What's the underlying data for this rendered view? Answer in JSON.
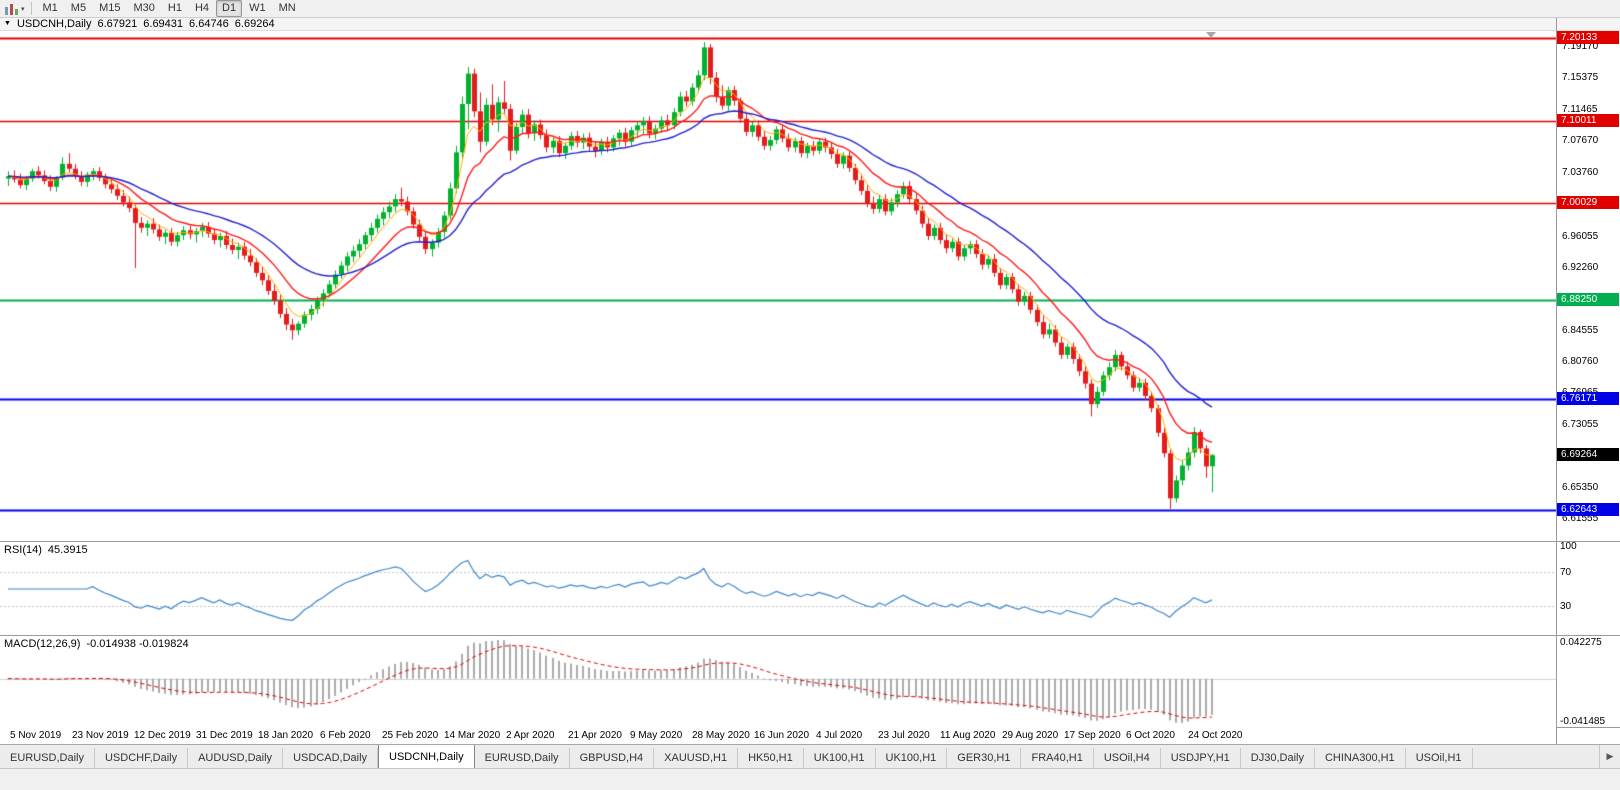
{
  "toolbar": {
    "timeframes": [
      "M1",
      "M5",
      "M15",
      "M30",
      "H1",
      "H4",
      "D1",
      "W1",
      "MN"
    ],
    "active_timeframe": "D1",
    "caret": "▾"
  },
  "title_bar": {
    "caret": "▼",
    "symbol": "USDCNH,Daily",
    "open": "6.67921",
    "high": "6.69431",
    "low": "6.64746",
    "close": "6.69264"
  },
  "theme": {
    "bull": "#00b22d",
    "bear": "#e51c1c",
    "hline_red": "#e00000",
    "hline_green": "#00b050",
    "hline_blue": "#0000e8",
    "current_price_bg": "#000000"
  },
  "tabs": {
    "items": [
      "EURUSD,Daily",
      "USDCHF,Daily",
      "AUDUSD,Daily",
      "USDCAD,Daily",
      "USDCNH,Daily",
      "EURUSD,Daily",
      "GBPUSD,H4",
      "XAUUSD,H1",
      "HK50,H1",
      "UK100,H1",
      "UK100,H1",
      "GER30,H1",
      "FRA40,H1",
      "USOil,H4",
      "USDJPY,H1",
      "DJ30,Daily",
      "CHINA300,H1",
      "USOil,H1"
    ],
    "active_index": 4,
    "scroll_right_icon": "▶"
  },
  "chart_data": {
    "type": "candlestick",
    "title": "USDCNH,Daily",
    "symbol": "USDCNH",
    "timeframe": "Daily",
    "x_axis": {
      "labels": [
        "5 Nov 2019",
        "23 Nov 2019",
        "12 Dec 2019",
        "31 Dec 2019",
        "18 Jan 2020",
        "6 Feb 2020",
        "25 Feb 2020",
        "14 Mar 2020",
        "2 Apr 2020",
        "21 Apr 2020",
        "9 May 2020",
        "28 May 2020",
        "16 Jun 2020",
        "4 Jul 2020",
        "23 Jul 2020",
        "11 Aug 2020",
        "29 Aug 2020",
        "17 Sep 2020",
        "6 Oct 2020",
        "24 Oct 2020"
      ]
    },
    "y_axis": {
      "ticks": [
        "7.19170",
        "7.15375",
        "7.11465",
        "7.07670",
        "7.03760",
        "6.99965",
        "6.96055",
        "6.92260",
        "6.88350",
        "6.84555",
        "6.80760",
        "6.76965",
        "6.73055",
        "6.69260",
        "6.65350",
        "6.61555"
      ]
    },
    "hlines": [
      {
        "label": "7.20133",
        "value": 7.20133,
        "color": "#e00000",
        "width": 2
      },
      {
        "label": "7.10011",
        "value": 7.10011,
        "color": "#e00000",
        "width": 1.5
      },
      {
        "label": "7.00029",
        "value": 7.00029,
        "color": "#e00000",
        "width": 1.5
      },
      {
        "label": "6.88250",
        "value": 6.8825,
        "color": "#00b050",
        "width": 2
      },
      {
        "label": "6.76171",
        "value": 6.76171,
        "color": "#0000e8",
        "width": 2
      },
      {
        "label": "6.62643",
        "value": 6.62643,
        "color": "#0000e8",
        "width": 2
      }
    ],
    "current_price": {
      "label": "6.69264",
      "value": 6.69264,
      "color": "#000000"
    },
    "overlays": [
      {
        "name": "MA fast",
        "type": "EMA",
        "period": 5,
        "color": "#ffaf00"
      },
      {
        "name": "MA mid",
        "type": "EMA",
        "period": 12,
        "color": "#ff1a1a"
      },
      {
        "name": "MA slow",
        "type": "EMA",
        "period": 26,
        "color": "#2222cf"
      }
    ],
    "indicators": {
      "rsi": {
        "label": "RSI(14)",
        "value": "45.3915",
        "color": "#3f87c9",
        "levels": [
          70,
          30
        ],
        "axis_labels": [
          {
            "label": "100",
            "value": 100
          },
          {
            "label": "70",
            "value": 70
          },
          {
            "label": "30",
            "value": 30
          }
        ]
      },
      "macd": {
        "label": "MACD(12,26,9)",
        "value": "-0.014938 -0.019824",
        "hist_color": "#ababab",
        "signal_color": "#e00000",
        "axis_labels": [
          {
            "label": "0.042275",
            "value": 0.042275
          },
          {
            "label": "-0.041485",
            "value": -0.041485
          }
        ]
      }
    },
    "last_candle_ohlc": {
      "open": 6.67921,
      "high": 6.69431,
      "low": 6.64746,
      "close": 6.69264
    },
    "candles": [
      [
        7.03,
        7.039,
        7.021,
        7.033
      ],
      [
        7.033,
        7.04,
        7.025,
        7.029
      ],
      [
        7.029,
        7.036,
        7.018,
        7.022
      ],
      [
        7.022,
        7.033,
        7.016,
        7.03
      ],
      [
        7.03,
        7.042,
        7.026,
        7.039
      ],
      [
        7.039,
        7.045,
        7.03,
        7.034
      ],
      [
        7.034,
        7.04,
        7.023,
        7.027
      ],
      [
        7.027,
        7.034,
        7.015,
        7.02
      ],
      [
        7.02,
        7.033,
        7.014,
        7.031
      ],
      [
        7.031,
        7.056,
        7.028,
        7.048
      ],
      [
        7.048,
        7.061,
        7.038,
        7.042
      ],
      [
        7.042,
        7.048,
        7.029,
        7.033
      ],
      [
        7.033,
        7.039,
        7.021,
        7.026
      ],
      [
        7.026,
        7.038,
        7.02,
        7.035
      ],
      [
        7.035,
        7.043,
        7.028,
        7.039
      ],
      [
        7.039,
        7.044,
        7.027,
        7.031
      ],
      [
        7.031,
        7.036,
        7.018,
        7.023
      ],
      [
        7.023,
        7.03,
        7.012,
        7.017
      ],
      [
        7.017,
        7.023,
        7.004,
        7.009
      ],
      [
        7.009,
        7.016,
        6.996,
        7.001
      ],
      [
        7.001,
        7.008,
        6.989,
        6.994
      ],
      [
        6.994,
        6.998,
        6.921,
        6.976
      ],
      [
        6.976,
        6.983,
        6.964,
        6.97
      ],
      [
        6.97,
        6.979,
        6.96,
        6.975
      ],
      [
        6.975,
        6.982,
        6.963,
        6.968
      ],
      [
        6.968,
        6.974,
        6.954,
        6.959
      ],
      [
        6.959,
        6.968,
        6.95,
        6.964
      ],
      [
        6.964,
        6.97,
        6.948,
        6.953
      ],
      [
        6.953,
        6.965,
        6.947,
        6.961
      ],
      [
        6.961,
        6.972,
        6.955,
        6.967
      ],
      [
        6.967,
        6.973,
        6.956,
        6.962
      ],
      [
        6.962,
        6.97,
        6.952,
        6.966
      ],
      [
        6.966,
        6.976,
        6.959,
        6.971
      ],
      [
        6.971,
        6.977,
        6.958,
        6.963
      ],
      [
        6.963,
        6.969,
        6.95,
        6.955
      ],
      [
        6.955,
        6.964,
        6.946,
        6.96
      ],
      [
        6.96,
        6.966,
        6.944,
        6.949
      ],
      [
        6.949,
        6.957,
        6.938,
        6.943
      ],
      [
        6.943,
        6.952,
        6.932,
        6.947
      ],
      [
        6.947,
        6.953,
        6.931,
        6.936
      ],
      [
        6.936,
        6.944,
        6.923,
        6.928
      ],
      [
        6.928,
        6.933,
        6.91,
        6.915
      ],
      [
        6.915,
        6.923,
        6.9,
        6.906
      ],
      [
        6.906,
        6.912,
        6.888,
        6.893
      ],
      [
        6.893,
        6.901,
        6.876,
        6.881
      ],
      [
        6.881,
        6.888,
        6.86,
        6.865
      ],
      [
        6.865,
        6.872,
        6.845,
        6.852
      ],
      [
        6.852,
        6.859,
        6.8335,
        6.845
      ],
      [
        6.845,
        6.856,
        6.839,
        6.853
      ],
      [
        6.853,
        6.868,
        6.848,
        6.864
      ],
      [
        6.864,
        6.876,
        6.857,
        6.871
      ],
      [
        6.871,
        6.886,
        6.865,
        6.882
      ],
      [
        6.882,
        6.895,
        6.874,
        6.89
      ],
      [
        6.89,
        6.906,
        6.885,
        6.901
      ],
      [
        6.901,
        6.918,
        6.896,
        6.913
      ],
      [
        6.913,
        6.929,
        6.908,
        6.924
      ],
      [
        6.924,
        6.94,
        6.917,
        6.935
      ],
      [
        6.935,
        6.948,
        6.928,
        6.942
      ],
      [
        6.942,
        6.956,
        6.934,
        6.95
      ],
      [
        6.95,
        6.965,
        6.944,
        6.961
      ],
      [
        6.961,
        6.976,
        6.954,
        6.97
      ],
      [
        6.97,
        6.986,
        6.964,
        6.981
      ],
      [
        6.981,
        6.995,
        6.973,
        6.989
      ],
      [
        6.989,
        7.002,
        6.982,
        6.996
      ],
      [
        6.996,
        7.011,
        6.989,
        7.005
      ],
      [
        7.005,
        7.019,
        6.996,
        7.002
      ],
      [
        7.002,
        7.008,
        6.985,
        6.99
      ],
      [
        6.99,
        6.995,
        6.969,
        6.974
      ],
      [
        6.974,
        6.98,
        6.954,
        6.959
      ],
      [
        6.959,
        6.966,
        6.938,
        6.944
      ],
      [
        6.944,
        6.956,
        6.935,
        6.952
      ],
      [
        6.952,
        6.97,
        6.946,
        6.965
      ],
      [
        6.965,
        6.99,
        6.958,
        6.985
      ],
      [
        6.985,
        7.025,
        6.98,
        7.018
      ],
      [
        7.018,
        7.07,
        7.012,
        7.062
      ],
      [
        7.062,
        7.13,
        7.055,
        7.121
      ],
      [
        7.121,
        7.166,
        7.09,
        7.158
      ],
      [
        7.158,
        7.164,
        7.105,
        7.112
      ],
      [
        7.112,
        7.135,
        7.062,
        7.075
      ],
      [
        7.075,
        7.128,
        7.07,
        7.12
      ],
      [
        7.12,
        7.145,
        7.095,
        7.102
      ],
      [
        7.102,
        7.13,
        7.087,
        7.123
      ],
      [
        7.123,
        7.149,
        7.108,
        7.115
      ],
      [
        7.115,
        7.121,
        7.052,
        7.064
      ],
      [
        7.064,
        7.098,
        7.06,
        7.093
      ],
      [
        7.093,
        7.114,
        7.085,
        7.108
      ],
      [
        7.108,
        7.115,
        7.079,
        7.085
      ],
      [
        7.085,
        7.101,
        7.076,
        7.096
      ],
      [
        7.096,
        7.102,
        7.078,
        7.083
      ],
      [
        7.083,
        7.09,
        7.062,
        7.068
      ],
      [
        7.068,
        7.081,
        7.061,
        7.076
      ],
      [
        7.076,
        7.082,
        7.056,
        7.061
      ],
      [
        7.061,
        7.074,
        7.054,
        7.07
      ],
      [
        7.07,
        7.087,
        7.065,
        7.082
      ],
      [
        7.082,
        7.088,
        7.068,
        7.074
      ],
      [
        7.074,
        7.085,
        7.066,
        7.08
      ],
      [
        7.08,
        7.086,
        7.063,
        7.069
      ],
      [
        7.069,
        7.076,
        7.056,
        7.064
      ],
      [
        7.064,
        7.079,
        7.059,
        7.075
      ],
      [
        7.075,
        7.081,
        7.062,
        7.068
      ],
      [
        7.068,
        7.083,
        7.063,
        7.079
      ],
      [
        7.079,
        7.09,
        7.07,
        7.086
      ],
      [
        7.086,
        7.092,
        7.069,
        7.075
      ],
      [
        7.075,
        7.093,
        7.07,
        7.089
      ],
      [
        7.089,
        7.1,
        7.08,
        7.095
      ],
      [
        7.095,
        7.105,
        7.084,
        7.1
      ],
      [
        7.1,
        7.106,
        7.079,
        7.085
      ],
      [
        7.085,
        7.096,
        7.078,
        7.091
      ],
      [
        7.091,
        7.106,
        7.086,
        7.101
      ],
      [
        7.101,
        7.108,
        7.089,
        7.095
      ],
      [
        7.095,
        7.116,
        7.09,
        7.111
      ],
      [
        7.111,
        7.136,
        7.106,
        7.13
      ],
      [
        7.13,
        7.137,
        7.118,
        7.124
      ],
      [
        7.124,
        7.146,
        7.119,
        7.141
      ],
      [
        7.141,
        7.162,
        7.135,
        7.156
      ],
      [
        7.156,
        7.1965,
        7.15,
        7.19
      ],
      [
        7.19,
        7.194,
        7.145,
        7.153
      ],
      [
        7.153,
        7.16,
        7.123,
        7.13
      ],
      [
        7.13,
        7.144,
        7.114,
        7.119
      ],
      [
        7.119,
        7.142,
        7.113,
        7.138
      ],
      [
        7.138,
        7.143,
        7.119,
        7.125
      ],
      [
        7.125,
        7.129,
        7.098,
        7.103
      ],
      [
        7.103,
        7.11,
        7.082,
        7.087
      ],
      [
        7.087,
        7.099,
        7.081,
        7.095
      ],
      [
        7.095,
        7.101,
        7.076,
        7.081
      ],
      [
        7.081,
        7.088,
        7.065,
        7.07
      ],
      [
        7.07,
        7.082,
        7.064,
        7.077
      ],
      [
        7.077,
        7.094,
        7.072,
        7.09
      ],
      [
        7.09,
        7.095,
        7.074,
        7.079
      ],
      [
        7.079,
        7.085,
        7.063,
        7.068
      ],
      [
        7.068,
        7.08,
        7.062,
        7.076
      ],
      [
        7.076,
        7.081,
        7.056,
        7.061
      ],
      [
        7.061,
        7.074,
        7.055,
        7.07
      ],
      [
        7.07,
        7.076,
        7.058,
        7.064
      ],
      [
        7.064,
        7.079,
        7.06,
        7.075
      ],
      [
        7.075,
        7.08,
        7.062,
        7.068
      ],
      [
        7.068,
        7.074,
        7.054,
        7.06
      ],
      [
        7.06,
        7.066,
        7.043,
        7.048
      ],
      [
        7.048,
        7.062,
        7.042,
        7.058
      ],
      [
        7.058,
        7.063,
        7.038,
        7.043
      ],
      [
        7.043,
        7.048,
        7.023,
        7.028
      ],
      [
        7.028,
        7.035,
        7.01,
        7.015
      ],
      [
        7.015,
        7.022,
        6.995,
        7.0
      ],
      [
        7.0,
        7.008,
        6.987,
        6.993
      ],
      [
        6.993,
        7.01,
        6.988,
        7.005
      ],
      [
        7.005,
        7.011,
        6.985,
        6.99
      ],
      [
        6.99,
        7.006,
        6.985,
        7.001
      ],
      [
        7.001,
        7.016,
        6.995,
        7.011
      ],
      [
        7.011,
        7.026,
        7.006,
        7.021
      ],
      [
        7.021,
        7.027,
        7.0,
        7.005
      ],
      [
        7.005,
        7.012,
        6.986,
        6.991
      ],
      [
        6.991,
        6.997,
        6.97,
        6.975
      ],
      [
        6.975,
        6.982,
        6.955,
        6.96
      ],
      [
        6.96,
        6.974,
        6.955,
        6.97
      ],
      [
        6.97,
        6.976,
        6.95,
        6.955
      ],
      [
        6.955,
        6.962,
        6.939,
        6.945
      ],
      [
        6.945,
        6.957,
        6.94,
        6.953
      ],
      [
        6.953,
        6.958,
        6.93,
        6.935
      ],
      [
        6.935,
        6.949,
        6.93,
        6.945
      ],
      [
        6.945,
        6.954,
        6.938,
        6.95
      ],
      [
        6.95,
        6.955,
        6.933,
        6.938
      ],
      [
        6.938,
        6.944,
        6.919,
        6.925
      ],
      [
        6.925,
        6.937,
        6.92,
        6.932
      ],
      [
        6.932,
        6.938,
        6.91,
        6.915
      ],
      [
        6.915,
        6.921,
        6.895,
        6.9
      ],
      [
        6.9,
        6.914,
        6.895,
        6.91
      ],
      [
        6.91,
        6.915,
        6.89,
        6.895
      ],
      [
        6.895,
        6.901,
        6.875,
        6.88
      ],
      [
        6.88,
        6.892,
        6.875,
        6.887
      ],
      [
        6.887,
        6.892,
        6.865,
        6.87
      ],
      [
        6.87,
        6.876,
        6.85,
        6.855
      ],
      [
        6.855,
        6.864,
        6.835,
        6.84
      ],
      [
        6.84,
        6.853,
        6.835,
        6.846
      ],
      [
        6.846,
        6.851,
        6.825,
        6.83
      ],
      [
        6.83,
        6.837,
        6.81,
        6.815
      ],
      [
        6.815,
        6.829,
        6.81,
        6.825
      ],
      [
        6.825,
        6.83,
        6.804,
        6.81
      ],
      [
        6.81,
        6.816,
        6.789,
        6.795
      ],
      [
        6.795,
        6.801,
        6.774,
        6.78
      ],
      [
        6.78,
        6.785,
        6.74,
        6.755
      ],
      [
        6.755,
        6.776,
        6.75,
        6.77
      ],
      [
        6.77,
        6.795,
        6.765,
        6.79
      ],
      [
        6.79,
        6.806,
        6.784,
        6.8
      ],
      [
        6.8,
        6.821,
        6.795,
        6.815
      ],
      [
        6.815,
        6.819,
        6.796,
        6.801
      ],
      [
        6.801,
        6.807,
        6.785,
        6.79
      ],
      [
        6.79,
        6.795,
        6.77,
        6.775
      ],
      [
        6.775,
        6.787,
        6.77,
        6.781
      ],
      [
        6.781,
        6.786,
        6.76,
        6.765
      ],
      [
        6.765,
        6.77,
        6.745,
        6.75
      ],
      [
        6.75,
        6.754,
        6.715,
        6.72
      ],
      [
        6.72,
        6.726,
        6.69,
        6.695
      ],
      [
        6.695,
        6.7,
        6.627,
        6.64
      ],
      [
        6.64,
        6.668,
        6.635,
        6.662
      ],
      [
        6.662,
        6.687,
        6.656,
        6.68
      ],
      [
        6.68,
        6.702,
        6.674,
        6.696
      ],
      [
        6.696,
        6.727,
        6.69,
        6.721
      ],
      [
        6.721,
        6.724,
        6.695,
        6.701
      ],
      [
        6.701,
        6.705,
        6.665,
        6.679
      ],
      [
        6.67921,
        6.69431,
        6.64746,
        6.69264
      ]
    ]
  }
}
